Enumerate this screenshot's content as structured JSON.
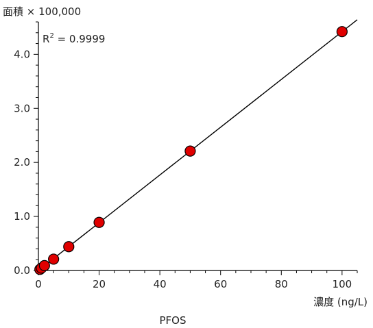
{
  "chart_data": {
    "type": "scatter",
    "title": "PFOS",
    "ylabel": "面積 × 100,000",
    "xlabel": "濃度 (ng/L)",
    "annotation": {
      "r2_prefix": "R",
      "r2_sup": "2",
      "r2_value": " = 0.9999"
    },
    "xlim": [
      0,
      105
    ],
    "ylim": [
      0,
      4.6
    ],
    "x_ticks": [
      0,
      20,
      40,
      60,
      80,
      100
    ],
    "x_tick_labels": [
      "0",
      "20",
      "40",
      "60",
      "80",
      "100"
    ],
    "y_ticks": [
      0,
      1,
      2,
      3,
      4
    ],
    "y_tick_labels": [
      "0.0",
      "1.0",
      "2.0",
      "3.0",
      "4.0"
    ],
    "series": [
      {
        "x": [
          0.5,
          1,
          2,
          5,
          10,
          20,
          50,
          100
        ],
        "y": [
          0.02,
          0.045,
          0.09,
          0.21,
          0.44,
          0.89,
          2.21,
          4.42
        ],
        "marker_color": "#e00000"
      }
    ],
    "fit_line": {
      "x": [
        0,
        105
      ],
      "y": [
        0,
        4.64
      ],
      "color": "#000000"
    },
    "grid": false,
    "legend": "none"
  }
}
